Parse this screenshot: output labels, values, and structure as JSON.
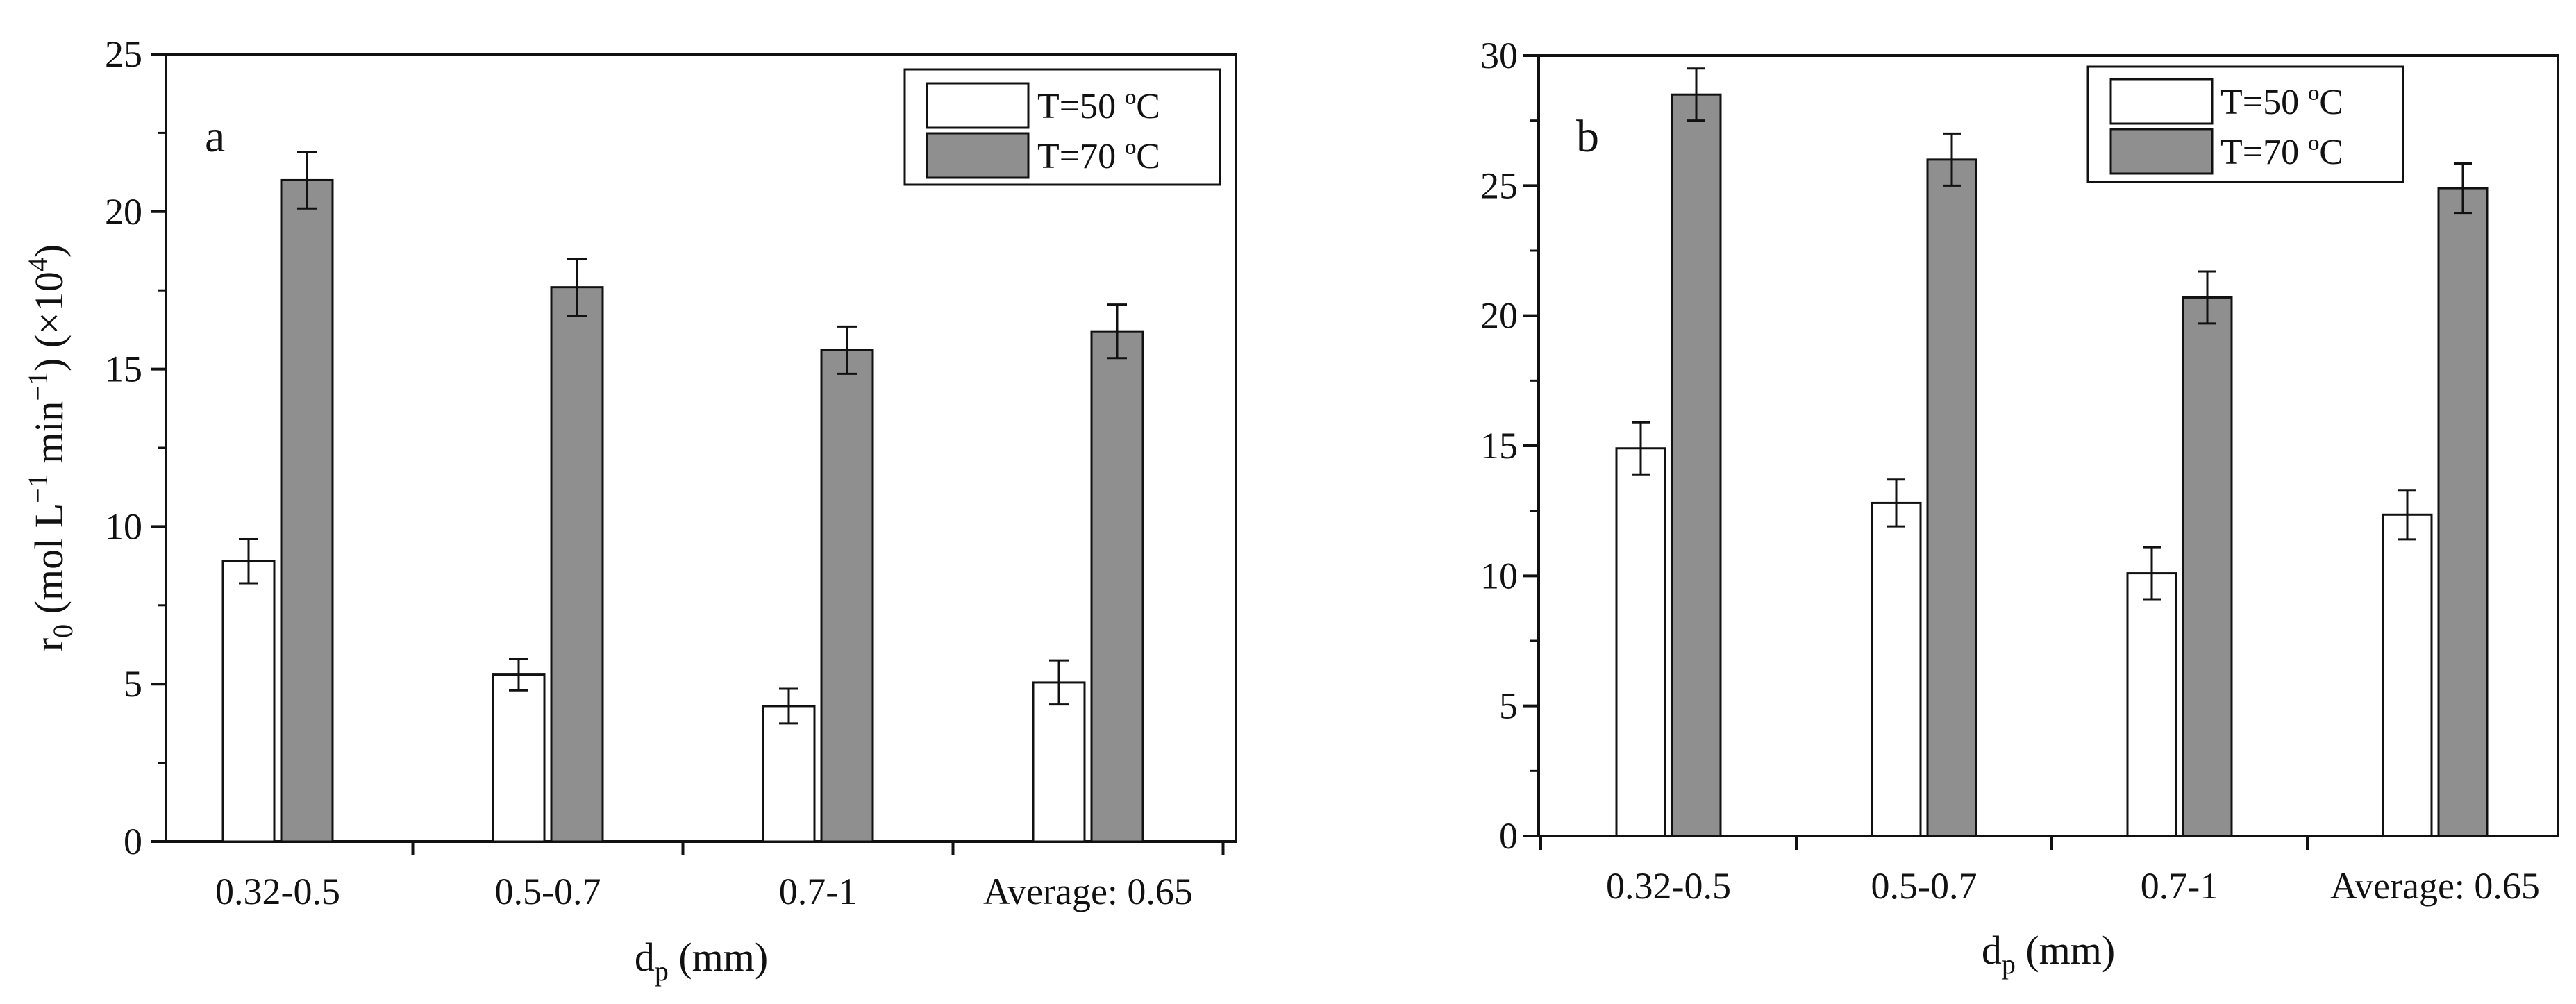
{
  "chart_data": [
    {
      "type": "bar",
      "panel_label": "a",
      "categories": [
        "0.32-0.5",
        "0.5-0.7",
        "0.7-1",
        "Average: 0.65"
      ],
      "series": [
        {
          "name": "T=50 ºC",
          "color": "#ffffff",
          "values": [
            8.9,
            5.3,
            4.3,
            5.05
          ],
          "errors": [
            0.7,
            0.5,
            0.55,
            0.7
          ]
        },
        {
          "name": "T=70 ºC",
          "color": "#8f8f8f",
          "values": [
            21.0,
            17.6,
            15.6,
            16.2
          ],
          "errors": [
            0.9,
            0.9,
            0.75,
            0.85
          ]
        }
      ],
      "xlabel_main": "d",
      "xlabel_sub": "p",
      "xlabel_tail": " (mm)",
      "ylabel_main": "r",
      "ylabel_sub": "0",
      "ylabel_mid1": " (mol L",
      "ylabel_sup1": "−1",
      "ylabel_mid2": " min",
      "ylabel_sup2": "−1",
      "ylabel_mid3": ") (×10",
      "ylabel_sup3": "4",
      "ylabel_end": ")",
      "ylim": [
        0,
        25
      ],
      "yticks": [
        0,
        5,
        10,
        15,
        20,
        25
      ],
      "yticks_minor": [
        2.5,
        7.5,
        12.5,
        17.5,
        22.5
      ],
      "legend_position": "top-right",
      "grid": false
    },
    {
      "type": "bar",
      "panel_label": "b",
      "categories": [
        "0.32-0.5",
        "0.5-0.7",
        "0.7-1",
        "Average: 0.65"
      ],
      "series": [
        {
          "name": "T=50 ºC",
          "color": "#ffffff",
          "values": [
            14.9,
            12.8,
            10.1,
            12.35
          ],
          "errors": [
            1.0,
            0.9,
            1.0,
            0.95
          ]
        },
        {
          "name": "T=70 ºC",
          "color": "#8f8f8f",
          "values": [
            28.5,
            26.0,
            20.7,
            24.9
          ],
          "errors": [
            1.0,
            1.0,
            1.0,
            0.95
          ]
        }
      ],
      "xlabel_main": "d",
      "xlabel_sub": "p",
      "xlabel_tail": " (mm)",
      "ylim": [
        0,
        30
      ],
      "yticks": [
        0,
        5,
        10,
        15,
        20,
        25,
        30
      ],
      "yticks_minor": [
        2.5,
        7.5,
        12.5,
        17.5,
        22.5,
        27.5
      ],
      "legend_position": "top-center",
      "grid": false
    }
  ]
}
